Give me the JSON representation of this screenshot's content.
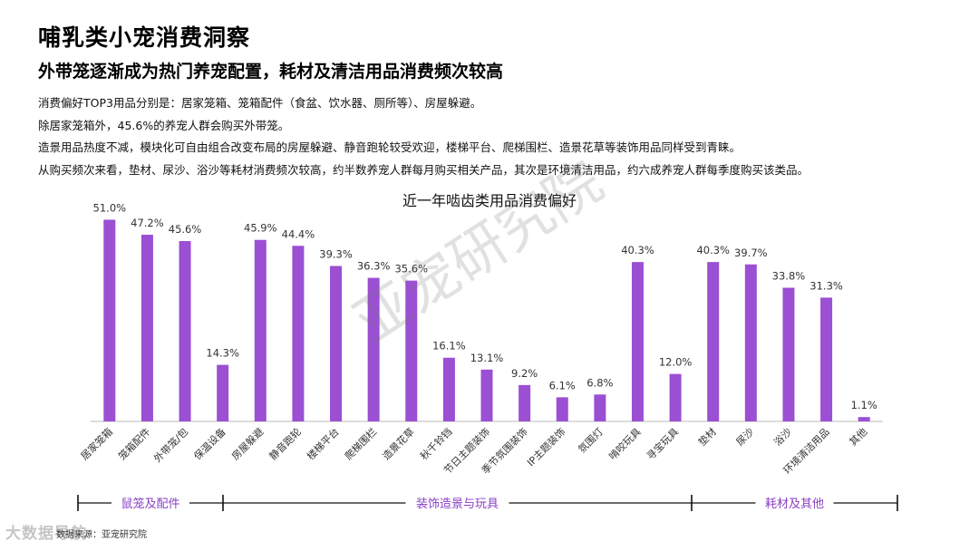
{
  "header": {
    "title": "哺乳类小宠消费洞察",
    "subtitle": "外带笼逐渐成为热门养宠配置，耗材及清洁用品消费频次较高",
    "bullets": [
      "消费偏好TOP3用品分别是：居家笼箱、笼箱配件（食盆、饮水器、厕所等）、房屋躲避。",
      "除居家笼箱外，45.6%的养宠人群会购买外带笼。",
      "造景用品热度不减，模块化可自由组合改变布局的房屋躲避、静音跑轮较受欢迎，楼梯平台、爬梯围栏、造景花草等装饰用品同样受到青睐。",
      "从购买频次来看，垫材、尿沙、浴沙等耗材消费频次较高，约半数养宠人群每月购买相关产品，其次是环境清洁用品，约六成养宠人群每季度购买该类品。"
    ]
  },
  "watermark": "亚宠研究院",
  "source_text": "数据来源：亚宠研究院",
  "logo_text": "大数据导航",
  "colors": {
    "bar": "#9b4fd3",
    "axis": "#bbbbbb",
    "group_label": "#8a3fc4"
  },
  "chart_data": {
    "type": "bar",
    "title": "近一年啮齿类用品消费偏好",
    "categories": [
      "居家笼箱",
      "笼箱配件",
      "外带笼/包",
      "保温设备",
      "房屋躲避",
      "静音跑轮",
      "楼梯平台",
      "爬梯围栏",
      "造景花草",
      "秋千铃铛",
      "节日主题装饰",
      "季节氛围装饰",
      "IP主题装饰",
      "氛围灯",
      "啃咬玩具",
      "寻宝玩具",
      "垫材",
      "尿沙",
      "浴沙",
      "环境清洁用品",
      "其他"
    ],
    "values": [
      51.0,
      47.2,
      45.6,
      14.3,
      45.9,
      44.4,
      39.3,
      36.3,
      35.6,
      16.1,
      13.1,
      9.2,
      6.1,
      6.8,
      40.3,
      12.0,
      40.3,
      39.7,
      33.8,
      31.3,
      1.1
    ],
    "value_labels": [
      "51.0%",
      "47.2%",
      "45.6%",
      "14.3%",
      "45.9%",
      "44.4%",
      "39.3%",
      "36.3%",
      "35.6%",
      "16.1%",
      "13.1%",
      "9.2%",
      "6.1%",
      "6.8%",
      "40.3%",
      "12.0%",
      "40.3%",
      "39.7%",
      "33.8%",
      "31.3%",
      "1.1%"
    ],
    "ylim": [
      0,
      55
    ],
    "grid": false,
    "groups": [
      {
        "label": "鼠笼及配件",
        "from": 0,
        "to": 3
      },
      {
        "label": "装饰造景与玩具",
        "from": 4,
        "to": 15
      },
      {
        "label": "耗材及其他",
        "from": 16,
        "to": 20
      }
    ]
  }
}
